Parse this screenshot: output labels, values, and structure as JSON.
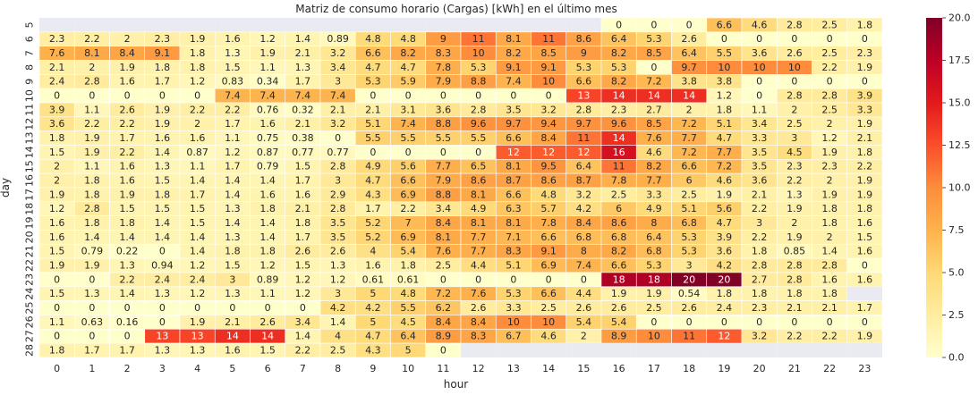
{
  "chart_data": {
    "type": "heatmap",
    "title": "Matriz de consumo horario (Cargas) [kWh] en el último mes",
    "xlabel": "hour",
    "ylabel": "day",
    "x": [
      0,
      1,
      2,
      3,
      4,
      5,
      6,
      7,
      8,
      9,
      10,
      11,
      12,
      13,
      14,
      15,
      16,
      17,
      18,
      19,
      20,
      21,
      22,
      23
    ],
    "y": [
      5,
      6,
      7,
      8,
      9,
      10,
      11,
      12,
      13,
      14,
      15,
      16,
      17,
      18,
      19,
      20,
      21,
      22,
      23,
      24,
      25,
      26,
      27,
      28
    ],
    "values": [
      [
        null,
        null,
        null,
        null,
        null,
        null,
        null,
        null,
        null,
        null,
        null,
        null,
        null,
        null,
        null,
        null,
        0,
        0,
        0,
        6.6,
        4.6,
        2.8,
        2.5,
        1.8
      ],
      [
        2.3,
        2.2,
        2,
        2.3,
        1.9,
        1.6,
        1.2,
        1.4,
        0.89,
        4.8,
        4.8,
        9,
        11,
        8.1,
        11,
        8.6,
        6.4,
        5.3,
        2.6,
        0,
        0,
        0,
        0,
        0
      ],
      [
        7.6,
        8.1,
        8.4,
        9.1,
        1.8,
        1.3,
        1.9,
        2.1,
        3.2,
        6.6,
        8.2,
        8.3,
        10,
        8.2,
        8.5,
        9,
        8.2,
        8.5,
        6.4,
        5.5,
        3.6,
        2.6,
        2.5,
        2.3
      ],
      [
        2.1,
        2,
        1.9,
        1.8,
        1.8,
        1.5,
        1.1,
        1.3,
        3.4,
        4.7,
        4.7,
        7.8,
        5.3,
        9.1,
        9.1,
        5.3,
        5.3,
        0,
        9.7,
        10,
        10,
        10,
        2.2,
        1.9
      ],
      [
        2.4,
        2.8,
        1.6,
        1.7,
        1.2,
        0.83,
        0.34,
        1.7,
        3,
        5.3,
        5.9,
        7.9,
        8.8,
        7.4,
        10,
        6.6,
        8.2,
        7.2,
        3.8,
        3.8,
        0,
        0,
        0,
        0
      ],
      [
        0,
        0,
        0,
        0,
        0,
        7.4,
        7.4,
        7.4,
        7.4,
        0,
        0,
        0,
        0,
        0,
        0,
        13,
        14,
        14,
        14,
        1.2,
        0,
        2.8,
        2.8,
        3.9
      ],
      [
        3.9,
        1.1,
        2.6,
        1.9,
        2.2,
        2.2,
        0.76,
        0.32,
        2.1,
        2.1,
        3.1,
        3.6,
        2.8,
        3.5,
        3.2,
        2.8,
        2.3,
        2.7,
        2,
        1.8,
        1.1,
        2,
        2.5,
        3.3
      ],
      [
        3.6,
        2.2,
        2.2,
        1.9,
        2,
        1.7,
        1.6,
        2.1,
        3.2,
        5.1,
        7.4,
        8.8,
        9.6,
        9.7,
        9.4,
        9.7,
        9.6,
        8.5,
        7.2,
        5.1,
        3.4,
        2.5,
        2,
        1.9
      ],
      [
        1.8,
        1.9,
        1.7,
        1.6,
        1.6,
        1.1,
        0.75,
        0.38,
        0,
        5.5,
        5.5,
        5.5,
        5.5,
        6.6,
        8.4,
        11,
        14,
        7.6,
        7.7,
        4.7,
        3.3,
        3,
        1.2,
        2.1
      ],
      [
        1.5,
        1.9,
        2.2,
        1.4,
        0.87,
        1.2,
        0.87,
        0.77,
        0.77,
        0,
        0,
        0,
        0,
        12,
        12,
        12,
        16,
        4.6,
        7.2,
        7.7,
        3.5,
        4.5,
        1.9,
        1.8
      ],
      [
        2,
        1.1,
        1.6,
        1.3,
        1.1,
        1.7,
        0.79,
        1.5,
        2.8,
        4.9,
        5.6,
        7.7,
        6.5,
        8.1,
        9.5,
        6.4,
        11,
        8.2,
        6.6,
        7.2,
        3.5,
        2.3,
        2.3,
        2.2
      ],
      [
        2,
        1.8,
        1.6,
        1.5,
        1.4,
        1.4,
        1.4,
        1.7,
        3,
        4.7,
        6.6,
        7.9,
        8.6,
        8.7,
        8.6,
        8.7,
        7.8,
        7.7,
        6,
        4.6,
        3.6,
        2.2,
        2,
        1.9
      ],
      [
        1.9,
        1.8,
        1.9,
        1.8,
        1.7,
        1.4,
        1.6,
        1.6,
        2.9,
        4.3,
        6.9,
        8.8,
        8.1,
        6.6,
        4.8,
        3.2,
        2.5,
        3.3,
        2.5,
        1.9,
        2.1,
        1.3,
        1.9,
        1.9
      ],
      [
        1.2,
        2.8,
        1.5,
        1.5,
        1.5,
        1.3,
        1.8,
        2.1,
        2.8,
        1.7,
        2.2,
        3.4,
        4.9,
        6.3,
        5.7,
        4.2,
        6,
        4.9,
        5.1,
        5.6,
        2.2,
        1.9,
        1.8,
        1.8
      ],
      [
        1.6,
        1.8,
        1.8,
        1.4,
        1.5,
        1.4,
        1.4,
        1.8,
        3.5,
        5.2,
        7,
        8.4,
        8.1,
        8.1,
        7.8,
        8.4,
        8.6,
        8,
        6.8,
        4.7,
        3,
        2,
        1.8,
        1.6
      ],
      [
        1.6,
        1.4,
        1.4,
        1.4,
        1.4,
        1.3,
        1.4,
        1.7,
        3.5,
        5.2,
        6.9,
        8.1,
        7.7,
        7.1,
        6.6,
        6.8,
        6.8,
        6.4,
        5.3,
        3.9,
        2.2,
        1.9,
        2,
        1.5
      ],
      [
        1.5,
        0.79,
        0.22,
        0,
        1.4,
        1.8,
        1.8,
        2.6,
        2.6,
        4,
        5.4,
        7.6,
        7.7,
        8.3,
        9.1,
        8,
        8.2,
        6.8,
        5.3,
        3.6,
        1.8,
        0.85,
        1.4,
        1.6
      ],
      [
        1.9,
        1.9,
        1.3,
        0.94,
        1.2,
        1.5,
        1.2,
        1.5,
        1.3,
        1.6,
        1.8,
        2.5,
        4.4,
        5.1,
        6.9,
        7.4,
        6.6,
        5.3,
        3,
        4.2,
        2.8,
        2.8,
        2.8,
        0
      ],
      [
        0,
        0,
        2.2,
        2.4,
        2.4,
        3,
        0.89,
        1.2,
        1.2,
        0.61,
        0.61,
        0,
        0,
        0,
        0,
        0,
        18,
        18,
        20,
        20,
        2.7,
        2.8,
        1.6,
        1.6
      ],
      [
        1.5,
        1.3,
        1.4,
        1.3,
        1.2,
        1.3,
        1.1,
        1.2,
        3,
        5,
        4.8,
        7.2,
        7.6,
        5.3,
        6.6,
        4.4,
        1.9,
        1.9,
        0.54,
        1.8,
        1.8,
        1.8,
        1.8,
        null
      ],
      [
        0,
        0,
        0,
        0,
        0,
        0,
        0,
        0,
        4.2,
        4.2,
        5.5,
        6.2,
        2.6,
        3.3,
        2.5,
        2.6,
        2.6,
        2.5,
        2.6,
        2.4,
        2.3,
        2.1,
        2.1,
        1.7
      ],
      [
        1.1,
        0.63,
        0.16,
        0,
        1.9,
        2.1,
        2.6,
        3.4,
        1.4,
        5,
        4.5,
        8.4,
        8.4,
        10,
        10,
        5.4,
        5.4,
        0,
        0,
        0,
        0,
        0,
        0,
        0
      ],
      [
        0,
        0,
        0,
        13,
        13,
        14,
        14,
        1.4,
        4,
        4.7,
        6.4,
        8.9,
        8.3,
        6.7,
        4.6,
        2,
        8.9,
        10,
        11,
        12,
        3.2,
        2.2,
        2.2,
        1.9
      ],
      [
        1.8,
        1.7,
        1.7,
        1.3,
        1.3,
        1.6,
        1.5,
        2.2,
        2.5,
        4.3,
        5,
        0,
        null,
        null,
        null,
        null,
        null,
        null,
        null,
        null,
        null,
        null,
        null,
        null
      ]
    ],
    "vmin": 0,
    "vmax": 20,
    "colormap": "YlOrRd",
    "colorbar_ticks": [
      "0.0",
      "2.5",
      "5.0",
      "7.5",
      "10.0",
      "12.5",
      "15.0",
      "17.5",
      "20.0"
    ],
    "missing_color": "#eaeaf2",
    "grid": false
  }
}
